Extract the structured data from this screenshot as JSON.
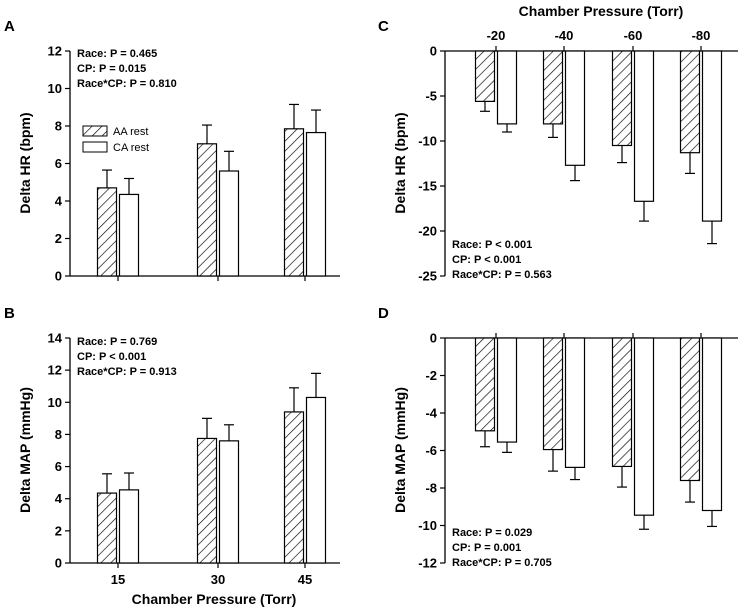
{
  "chart_data": [
    {
      "panel": "A",
      "type": "bar",
      "ylabel": "Delta HR (bpm)",
      "xlabel": "",
      "categories": [
        "15",
        "30",
        "45"
      ],
      "ylim": [
        0,
        12
      ],
      "yticks": [
        0,
        2,
        4,
        6,
        8,
        10,
        12
      ],
      "series": [
        {
          "name": "AA rest",
          "values": [
            4.7,
            7.05,
            7.85
          ],
          "errors": [
            0.95,
            1.0,
            1.3
          ]
        },
        {
          "name": "CA rest",
          "values": [
            4.35,
            5.6,
            7.65
          ],
          "errors": [
            0.85,
            1.05,
            1.2
          ]
        }
      ],
      "stats": [
        "Race:  P = 0.465",
        "CP:  P = 0.015",
        "Race*CP:  P = 0.810"
      ],
      "legend": [
        "AA rest",
        "CA rest"
      ]
    },
    {
      "panel": "B",
      "type": "bar",
      "ylabel": "Delta MAP (mmHg)",
      "xlabel": "Chamber Pressure (Torr)",
      "categories": [
        "15",
        "30",
        "45"
      ],
      "ylim": [
        0,
        14
      ],
      "yticks": [
        0,
        2,
        4,
        6,
        8,
        10,
        12,
        14
      ],
      "series": [
        {
          "name": "AA rest",
          "values": [
            4.35,
            7.75,
            9.4
          ],
          "errors": [
            1.2,
            1.25,
            1.5
          ]
        },
        {
          "name": "CA rest",
          "values": [
            4.55,
            7.6,
            10.3
          ],
          "errors": [
            1.05,
            1.0,
            1.5
          ]
        }
      ],
      "stats": [
        "Race:  P = 0.769",
        "CP:  P < 0.001",
        "Race*CP:  P = 0.913"
      ]
    },
    {
      "panel": "C",
      "type": "bar",
      "ylabel": "Delta HR (bpm)",
      "xlabel": "Chamber Pressure (Torr)",
      "categories": [
        "-20",
        "-40",
        "-60",
        "-80"
      ],
      "ylim": [
        -25,
        0
      ],
      "yticks": [
        0,
        -5,
        -10,
        -15,
        -20,
        -25
      ],
      "series": [
        {
          "name": "AA rest",
          "values": [
            -5.6,
            -8.1,
            -10.5,
            -11.3
          ],
          "errors": [
            1.1,
            1.5,
            1.9,
            2.3
          ]
        },
        {
          "name": "CA rest",
          "values": [
            -8.1,
            -12.7,
            -16.7,
            -18.9
          ],
          "errors": [
            0.9,
            1.7,
            2.2,
            2.5
          ]
        }
      ],
      "stats": [
        "Race:  P < 0.001",
        "CP:  P < 0.001",
        "Race*CP:  P = 0.563"
      ]
    },
    {
      "panel": "D",
      "type": "bar",
      "ylabel": "Delta MAP (mmHg)",
      "xlabel": "",
      "categories": [
        "-20",
        "-40",
        "-60",
        "-80"
      ],
      "ylim": [
        -12,
        0
      ],
      "yticks": [
        0,
        -2,
        -4,
        -6,
        -8,
        -10,
        -12
      ],
      "series": [
        {
          "name": "AA rest",
          "values": [
            -4.95,
            -5.95,
            -6.85,
            -7.6
          ],
          "errors": [
            0.85,
            1.15,
            1.1,
            1.15
          ]
        },
        {
          "name": "CA rest",
          "values": [
            -5.55,
            -6.9,
            -9.45,
            -9.2
          ],
          "errors": [
            0.55,
            0.65,
            0.75,
            0.85
          ]
        }
      ],
      "stats": [
        "Race:  P = 0.029",
        "CP:  P = 0.001",
        "Race*CP:  P = 0.705"
      ]
    }
  ]
}
